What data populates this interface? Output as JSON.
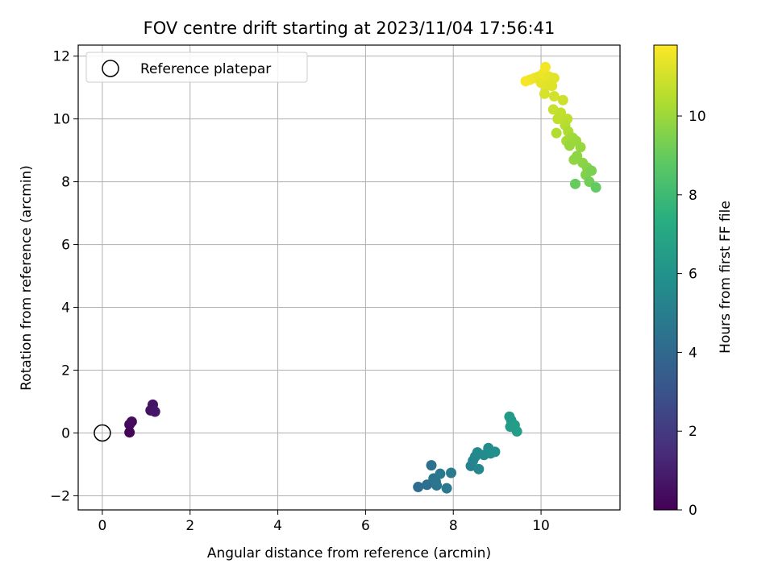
{
  "chart_data": {
    "type": "scatter",
    "title": "FOV centre drift starting at 2023/11/04 17:56:41",
    "xlabel": "Angular distance from reference (arcmin)",
    "ylabel": "Rotation from reference (arcmin)",
    "xlim": [
      -0.55,
      11.8
    ],
    "ylim": [
      -2.45,
      12.35
    ],
    "xticks": [
      0,
      2,
      4,
      6,
      8,
      10
    ],
    "yticks": [
      -2,
      0,
      2,
      4,
      6,
      8,
      10,
      12
    ],
    "grid": true,
    "legend": {
      "position": "top-left",
      "entries": [
        "Reference platepar"
      ]
    },
    "reference_point": {
      "x": 0,
      "y": 0
    },
    "colorbar": {
      "label": "Hours from first FF file",
      "colormap": "viridis",
      "range": [
        0,
        11.8
      ],
      "ticks": [
        0,
        2,
        4,
        6,
        8,
        10
      ]
    },
    "points": [
      {
        "x": 0.62,
        "y": 0.02,
        "c": 0.15
      },
      {
        "x": 0.62,
        "y": 0.27,
        "c": 0.25
      },
      {
        "x": 0.67,
        "y": 0.36,
        "c": 0.35
      },
      {
        "x": 1.1,
        "y": 0.72,
        "c": 0.55
      },
      {
        "x": 1.15,
        "y": 0.9,
        "c": 0.65
      },
      {
        "x": 1.2,
        "y": 0.68,
        "c": 0.75
      },
      {
        "x": 7.2,
        "y": -1.72,
        "c": 4.2
      },
      {
        "x": 7.4,
        "y": -1.65,
        "c": 4.3
      },
      {
        "x": 7.5,
        "y": -1.03,
        "c": 4.4
      },
      {
        "x": 7.55,
        "y": -1.45,
        "c": 4.5
      },
      {
        "x": 7.6,
        "y": -1.55,
        "c": 4.55
      },
      {
        "x": 7.62,
        "y": -1.67,
        "c": 4.6
      },
      {
        "x": 7.7,
        "y": -1.3,
        "c": 4.7
      },
      {
        "x": 7.85,
        "y": -1.76,
        "c": 4.75
      },
      {
        "x": 7.95,
        "y": -1.27,
        "c": 4.85
      },
      {
        "x": 8.4,
        "y": -1.05,
        "c": 5.2
      },
      {
        "x": 8.45,
        "y": -0.88,
        "c": 5.3
      },
      {
        "x": 8.5,
        "y": -0.75,
        "c": 5.4
      },
      {
        "x": 8.55,
        "y": -0.62,
        "c": 5.5
      },
      {
        "x": 8.58,
        "y": -1.15,
        "c": 5.45
      },
      {
        "x": 8.7,
        "y": -0.7,
        "c": 5.6
      },
      {
        "x": 8.8,
        "y": -0.48,
        "c": 5.7
      },
      {
        "x": 8.85,
        "y": -0.65,
        "c": 5.75
      },
      {
        "x": 8.95,
        "y": -0.6,
        "c": 5.85
      },
      {
        "x": 9.28,
        "y": 0.52,
        "c": 6.3
      },
      {
        "x": 9.32,
        "y": 0.4,
        "c": 6.35
      },
      {
        "x": 9.3,
        "y": 0.2,
        "c": 6.4
      },
      {
        "x": 9.4,
        "y": 0.25,
        "c": 6.45
      },
      {
        "x": 9.45,
        "y": 0.05,
        "c": 6.5
      },
      {
        "x": 9.65,
        "y": 11.2,
        "c": 11.7
      },
      {
        "x": 9.75,
        "y": 11.25,
        "c": 11.6
      },
      {
        "x": 9.85,
        "y": 11.3,
        "c": 11.5
      },
      {
        "x": 9.95,
        "y": 11.35,
        "c": 11.45
      },
      {
        "x": 10.0,
        "y": 11.15,
        "c": 11.4
      },
      {
        "x": 10.05,
        "y": 11.45,
        "c": 11.5
      },
      {
        "x": 10.1,
        "y": 11.65,
        "c": 11.6
      },
      {
        "x": 10.12,
        "y": 11.05,
        "c": 11.3
      },
      {
        "x": 10.18,
        "y": 11.35,
        "c": 11.35
      },
      {
        "x": 10.25,
        "y": 11.05,
        "c": 11.2
      },
      {
        "x": 10.3,
        "y": 11.3,
        "c": 11.25
      },
      {
        "x": 10.08,
        "y": 10.8,
        "c": 11.1
      },
      {
        "x": 10.3,
        "y": 10.72,
        "c": 11.0
      },
      {
        "x": 10.5,
        "y": 10.6,
        "c": 10.9
      },
      {
        "x": 10.28,
        "y": 10.3,
        "c": 10.8
      },
      {
        "x": 10.45,
        "y": 10.2,
        "c": 10.7
      },
      {
        "x": 10.38,
        "y": 10.0,
        "c": 10.65
      },
      {
        "x": 10.6,
        "y": 10.0,
        "c": 10.6
      },
      {
        "x": 10.55,
        "y": 9.8,
        "c": 10.5
      },
      {
        "x": 10.35,
        "y": 9.55,
        "c": 10.4
      },
      {
        "x": 10.62,
        "y": 9.6,
        "c": 10.3
      },
      {
        "x": 10.58,
        "y": 9.3,
        "c": 10.2
      },
      {
        "x": 10.72,
        "y": 9.4,
        "c": 10.1
      },
      {
        "x": 10.8,
        "y": 9.3,
        "c": 10.0
      },
      {
        "x": 10.65,
        "y": 9.15,
        "c": 9.95
      },
      {
        "x": 10.9,
        "y": 9.1,
        "c": 9.9
      },
      {
        "x": 10.75,
        "y": 8.7,
        "c": 9.8
      },
      {
        "x": 10.82,
        "y": 8.82,
        "c": 9.75
      },
      {
        "x": 10.95,
        "y": 8.6,
        "c": 9.7
      },
      {
        "x": 11.05,
        "y": 8.45,
        "c": 9.6
      },
      {
        "x": 11.02,
        "y": 8.22,
        "c": 9.5
      },
      {
        "x": 11.15,
        "y": 8.35,
        "c": 9.4
      },
      {
        "x": 11.1,
        "y": 8.0,
        "c": 9.2
      },
      {
        "x": 10.78,
        "y": 7.93,
        "c": 9.0
      },
      {
        "x": 11.25,
        "y": 7.82,
        "c": 8.9
      }
    ]
  }
}
